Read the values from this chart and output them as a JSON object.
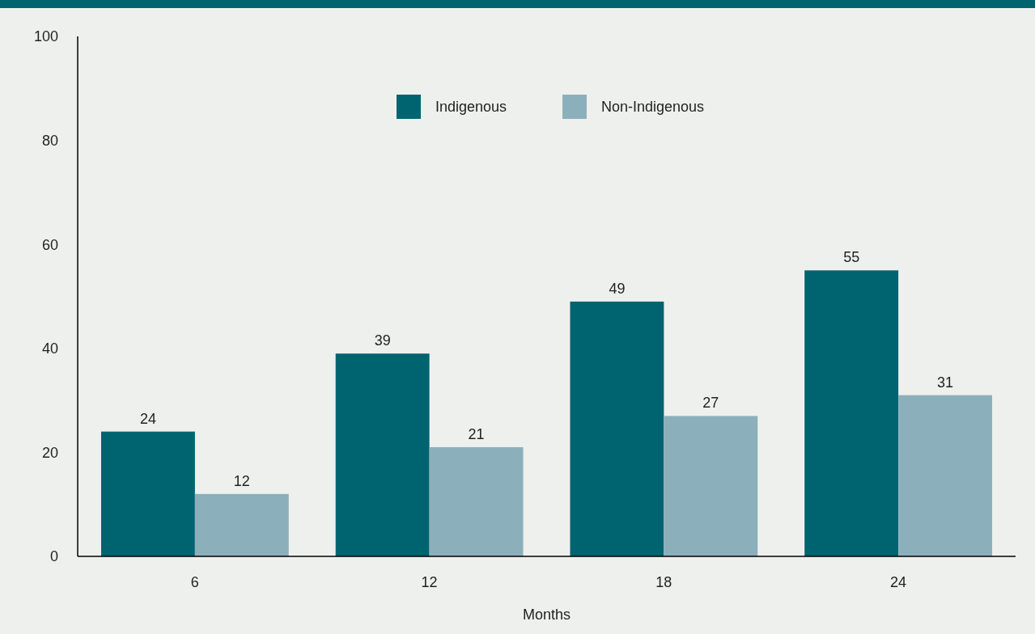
{
  "chart_data": {
    "type": "bar",
    "xlabel": "Months",
    "categories": [
      "6",
      "12",
      "18",
      "24"
    ],
    "series": [
      {
        "name": "Indigenous",
        "color": "#006470",
        "values": [
          24,
          39,
          49,
          55
        ]
      },
      {
        "name": "Non-Indigenous",
        "color": "#8cb0bb",
        "values": [
          12,
          21,
          27,
          31
        ]
      }
    ],
    "ylim": [
      0,
      100
    ],
    "yticks": [
      0,
      20,
      40,
      60,
      80,
      100
    ],
    "grid": false,
    "legend": "top",
    "data_labels": true
  }
}
